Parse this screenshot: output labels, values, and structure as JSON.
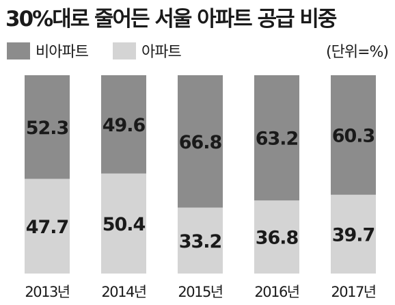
{
  "chart_data": {
    "type": "bar",
    "stacked": true,
    "title": "30%대로 줄어든 서울 아파트 공급 비중",
    "unit": "(단위=%)",
    "categories": [
      "2013년",
      "2014년",
      "2015년",
      "2016년",
      "2017년"
    ],
    "series": [
      {
        "name": "비아파트",
        "values": [
          52.3,
          49.6,
          66.8,
          63.2,
          60.3
        ],
        "color": "#8c8c8c"
      },
      {
        "name": "아파트",
        "values": [
          47.7,
          50.4,
          33.2,
          36.8,
          39.7
        ],
        "color": "#d4d4d4"
      }
    ],
    "ylim": [
      0,
      100
    ],
    "legend_position": "top-left"
  }
}
